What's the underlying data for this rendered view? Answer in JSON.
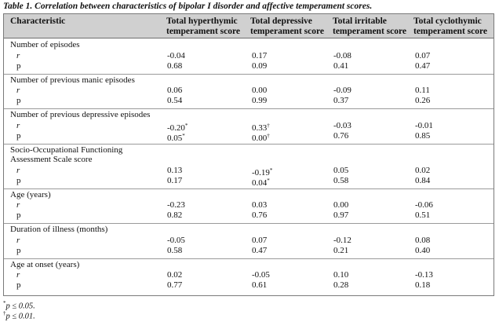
{
  "caption": "Table 1. Correlation between characteristics of bipolar I disorder and affective temperament scores.",
  "headers": {
    "characteristic": "Characteristic",
    "hyperthymic": [
      "Total hyperthymic",
      "temperament score"
    ],
    "depressive": [
      "Total depressive",
      "temperament score"
    ],
    "irritable": [
      "Total irritable",
      "temperament score"
    ],
    "cyclothymic": [
      "Total cyclothymic",
      "temperament score"
    ]
  },
  "groups": [
    {
      "name": [
        "Number of episodes"
      ],
      "r": {
        "label": "r",
        "values": [
          "-0.04",
          "0.17",
          "-0.08",
          "0.07"
        ],
        "marks": [
          "",
          "",
          "",
          ""
        ]
      },
      "p": {
        "label": "p",
        "values": [
          "0.68",
          "0.09",
          "0.41",
          "0.47"
        ],
        "marks": [
          "",
          "",
          "",
          ""
        ]
      }
    },
    {
      "name": [
        "Number of previous manic episodes"
      ],
      "r": {
        "label": "r",
        "values": [
          "0.06",
          "0.00",
          "-0.09",
          "0.11"
        ],
        "marks": [
          "",
          "",
          "",
          ""
        ]
      },
      "p": {
        "label": "p",
        "values": [
          "0.54",
          "0.99",
          "0.37",
          "0.26"
        ],
        "marks": [
          "",
          "",
          "",
          ""
        ]
      }
    },
    {
      "name": [
        "Number of previous depressive episodes"
      ],
      "r": {
        "label": "r",
        "values": [
          "-0.20",
          "0.33",
          "-0.03",
          "-0.01"
        ],
        "marks": [
          "*",
          "†",
          "",
          ""
        ]
      },
      "p": {
        "label": "p",
        "values": [
          "0.05",
          "0.00",
          "0.76",
          "0.85"
        ],
        "marks": [
          "*",
          "†",
          "",
          ""
        ]
      }
    },
    {
      "name": [
        "Socio-Occupational Functioning",
        "Assessment Scale score"
      ],
      "r": {
        "label": "r",
        "values": [
          "0.13",
          "-0.19",
          "0.05",
          "0.02"
        ],
        "marks": [
          "",
          "*",
          "",
          ""
        ]
      },
      "p": {
        "label": "p",
        "values": [
          "0.17",
          "0.04",
          "0.58",
          "0.84"
        ],
        "marks": [
          "",
          "*",
          "",
          ""
        ]
      }
    },
    {
      "name": [
        "Age (years)"
      ],
      "r": {
        "label": "r",
        "values": [
          "-0.23",
          "0.03",
          "0.00",
          "-0.06"
        ],
        "marks": [
          "",
          "",
          "",
          ""
        ]
      },
      "p": {
        "label": "p",
        "values": [
          "0.82",
          "0.76",
          "0.97",
          "0.51"
        ],
        "marks": [
          "",
          "",
          "",
          ""
        ]
      }
    },
    {
      "name": [
        "Duration of illness (months)"
      ],
      "r": {
        "label": "r",
        "values": [
          "-0.05",
          "0.07",
          "-0.12",
          "0.08"
        ],
        "marks": [
          "",
          "",
          "",
          ""
        ]
      },
      "p": {
        "label": "p",
        "values": [
          "0.58",
          "0.47",
          "0.21",
          "0.40"
        ],
        "marks": [
          "",
          "",
          "",
          ""
        ]
      }
    },
    {
      "name": [
        "Age at onset (years)"
      ],
      "r": {
        "label": "r",
        "values": [
          "0.02",
          "-0.05",
          "0.10",
          "-0.13"
        ],
        "marks": [
          "",
          "",
          "",
          ""
        ]
      },
      "p": {
        "label": "p",
        "values": [
          "0.77",
          "0.61",
          "0.28",
          "0.18"
        ],
        "marks": [
          "",
          "",
          "",
          ""
        ]
      }
    }
  ],
  "footnotes": [
    {
      "mark": "*",
      "text": "p ≤ 0.05."
    },
    {
      "mark": "†",
      "text": "p ≤ 0.01."
    }
  ]
}
